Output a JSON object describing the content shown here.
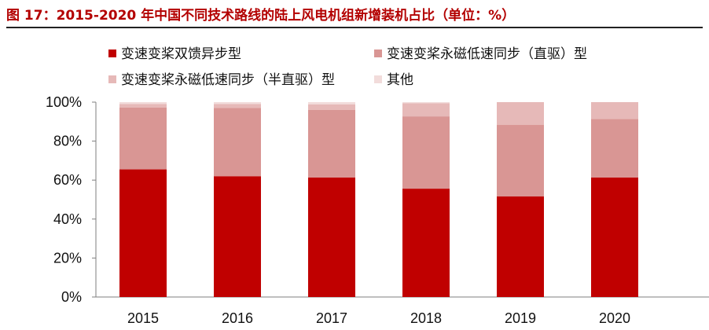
{
  "title": "图 17：2015-2020 年中国不同技术路线的陆上风电机组新增装机占比（单位：%）",
  "chart_data": {
    "type": "bar",
    "stacked": true,
    "title": "图 17：2015-2020 年中国不同技术路线的陆上风电机组新增装机占比（单位：%）",
    "categories": [
      "2015",
      "2016",
      "2017",
      "2018",
      "2019",
      "2020"
    ],
    "series": [
      {
        "name": "变速变桨双馈异步型",
        "color": "#c00000",
        "values": [
          65.5,
          62,
          61.3,
          55.6,
          51.6,
          61.3
        ]
      },
      {
        "name": "变速变桨永磁低速同步（直驱）型",
        "color": "#d99694",
        "values": [
          31.8,
          35,
          34.8,
          37.1,
          36.7,
          30.1
        ]
      },
      {
        "name": "变速变桨永磁低速同步（半直驱）型",
        "color": "#e6b9b8",
        "values": [
          1.8,
          2,
          2.8,
          6.7,
          11.7,
          8.6
        ]
      },
      {
        "name": "其他",
        "color": "#f2dcdb",
        "values": [
          0.9,
          1,
          1.1,
          0.6,
          0,
          0
        ]
      }
    ],
    "yticks": [
      "0%",
      "20%",
      "40%",
      "60%",
      "80%",
      "100%"
    ],
    "ylim": [
      0,
      100
    ],
    "xlabel": "",
    "ylabel": "",
    "grid": false,
    "legend_position": "top-left"
  }
}
